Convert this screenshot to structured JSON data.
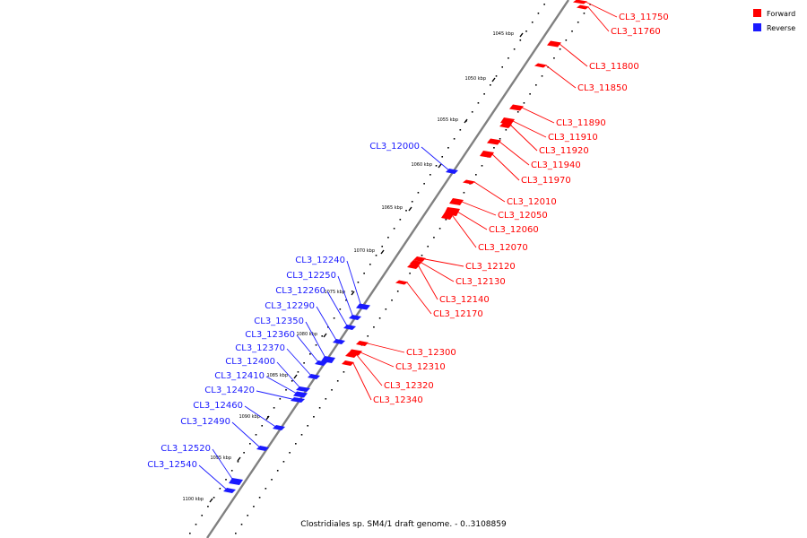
{
  "caption": "Clostridiales sp. SM4/1 draft genome. - 0..3108859",
  "legend": [
    {
      "label": "Forward",
      "color": "#ff0000"
    },
    {
      "label": "Reverse",
      "color": "#1a1aff"
    }
  ],
  "colors": {
    "forward": "#ff0000",
    "reverse": "#1a1aff",
    "backbone": "#808080"
  },
  "kbp_ticks": [
    "1045 kbp",
    "1050 kbp",
    "1055 kbp",
    "1060 kbp",
    "1065 kbp",
    "1070 kbp",
    "1075 kbp",
    "1080 kbp",
    "1085 kbp",
    "1090 kbp",
    "1095 kbp",
    "1100 kbp"
  ],
  "forward_genes": [
    "CL3_11750",
    "CL3_11760",
    "CL3_11800",
    "CL3_11850",
    "CL3_11890",
    "CL3_11910",
    "CL3_11920",
    "CL3_11940",
    "CL3_11970",
    "CL3_12010",
    "CL3_12050",
    "CL3_12060",
    "CL3_12070",
    "CL3_12120",
    "CL3_12130",
    "CL3_12140",
    "CL3_12170",
    "CL3_12300",
    "CL3_12310",
    "CL3_12320",
    "CL3_12340"
  ],
  "reverse_genes": [
    "CL3_12000",
    "CL3_12240",
    "CL3_12250",
    "CL3_12260",
    "CL3_12290",
    "CL3_12350",
    "CL3_12360",
    "CL3_12370",
    "CL3_12400",
    "CL3_12410",
    "CL3_12420",
    "CL3_12460",
    "CL3_12490",
    "CL3_12520",
    "CL3_12540"
  ]
}
